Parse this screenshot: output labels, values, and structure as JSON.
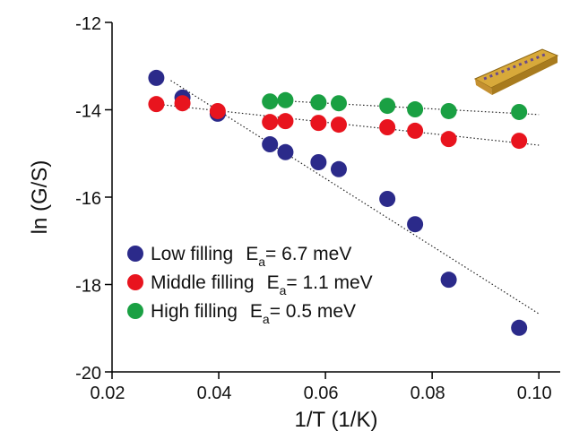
{
  "chart_data": {
    "type": "scatter",
    "xlabel": "1/T (1/K)",
    "ylabel": "ln (G/S)",
    "xlim": [
      0.02,
      0.104
    ],
    "ylim": [
      -20,
      -12
    ],
    "xticks": [
      0.02,
      0.04,
      0.06,
      0.08,
      {
        "value": 0.1,
        "label": "0.10"
      }
    ],
    "yticks": [
      -20,
      -18,
      -16,
      -14,
      -12
    ],
    "grid": false,
    "legend": "lower left",
    "series": [
      {
        "name": "Low filling",
        "color": "#2b2a8a",
        "energy": {
          "symbol": "E",
          "subscript": "a",
          "text": "= 6.7 meV"
        },
        "x": [
          0.0283,
          0.0332,
          0.0398,
          0.0496,
          0.0525,
          0.0587,
          0.0625,
          0.0716,
          0.0768,
          0.0831,
          0.0963
        ],
        "values": [
          -13.27,
          -13.72,
          -14.09,
          -14.79,
          -14.97,
          -15.2,
          -15.36,
          -16.04,
          -16.62,
          -17.89,
          -18.99
        ],
        "fit": {
          "x": [
            0.031,
            0.1
          ],
          "y": [
            -13.33,
            -18.67
          ]
        }
      },
      {
        "name": "Middle filling",
        "color": "#e8141e",
        "energy": {
          "symbol": "E",
          "subscript": "a",
          "text": "= 1.1 meV"
        },
        "x": [
          0.0283,
          0.0332,
          0.0398,
          0.0496,
          0.0525,
          0.0587,
          0.0625,
          0.0716,
          0.0768,
          0.0831,
          0.0963
        ],
        "values": [
          -13.87,
          -13.85,
          -14.03,
          -14.28,
          -14.26,
          -14.3,
          -14.34,
          -14.4,
          -14.48,
          -14.67,
          -14.71
        ],
        "fit": {
          "x": [
            0.0283,
            0.1
          ],
          "y": [
            -13.87,
            -14.81
          ]
        }
      },
      {
        "name": "High filling",
        "color": "#1aa043",
        "energy": {
          "symbol": "E",
          "subscript": "a",
          "text": "= 0.5 meV"
        },
        "x": [
          0.0496,
          0.0525,
          0.0587,
          0.0625,
          0.0716,
          0.0768,
          0.0831,
          0.0963
        ],
        "values": [
          -13.81,
          -13.78,
          -13.83,
          -13.85,
          -13.91,
          -13.99,
          -14.03,
          -14.05
        ],
        "fit": {
          "x": [
            0.0496,
            0.1
          ],
          "y": [
            -13.78,
            -14.11
          ]
        }
      }
    ]
  }
}
